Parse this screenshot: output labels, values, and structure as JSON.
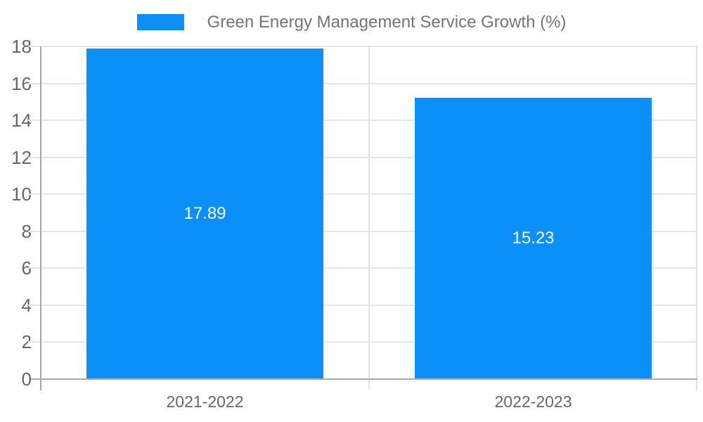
{
  "chart_data": {
    "type": "bar",
    "title": "Green Energy Management Service Growth (%)",
    "legend_position": "top",
    "categories": [
      "2021-2022",
      "2022-2023"
    ],
    "values": [
      17.89,
      15.23
    ],
    "value_labels": [
      "17.89",
      "15.23"
    ],
    "xlabel": "",
    "ylabel": "",
    "ylim": [
      0,
      18
    ],
    "yticks": [
      0,
      2,
      4,
      6,
      8,
      10,
      12,
      14,
      16,
      18
    ],
    "grid": true,
    "bar_color": "#0a90f8",
    "value_label_color": "#ffffff"
  },
  "colors": {
    "background": "#ffffff",
    "gridline": "#e6e6e6",
    "axis_line": "#ababab",
    "axis_text": "#666666",
    "legend_text": "#757575"
  }
}
